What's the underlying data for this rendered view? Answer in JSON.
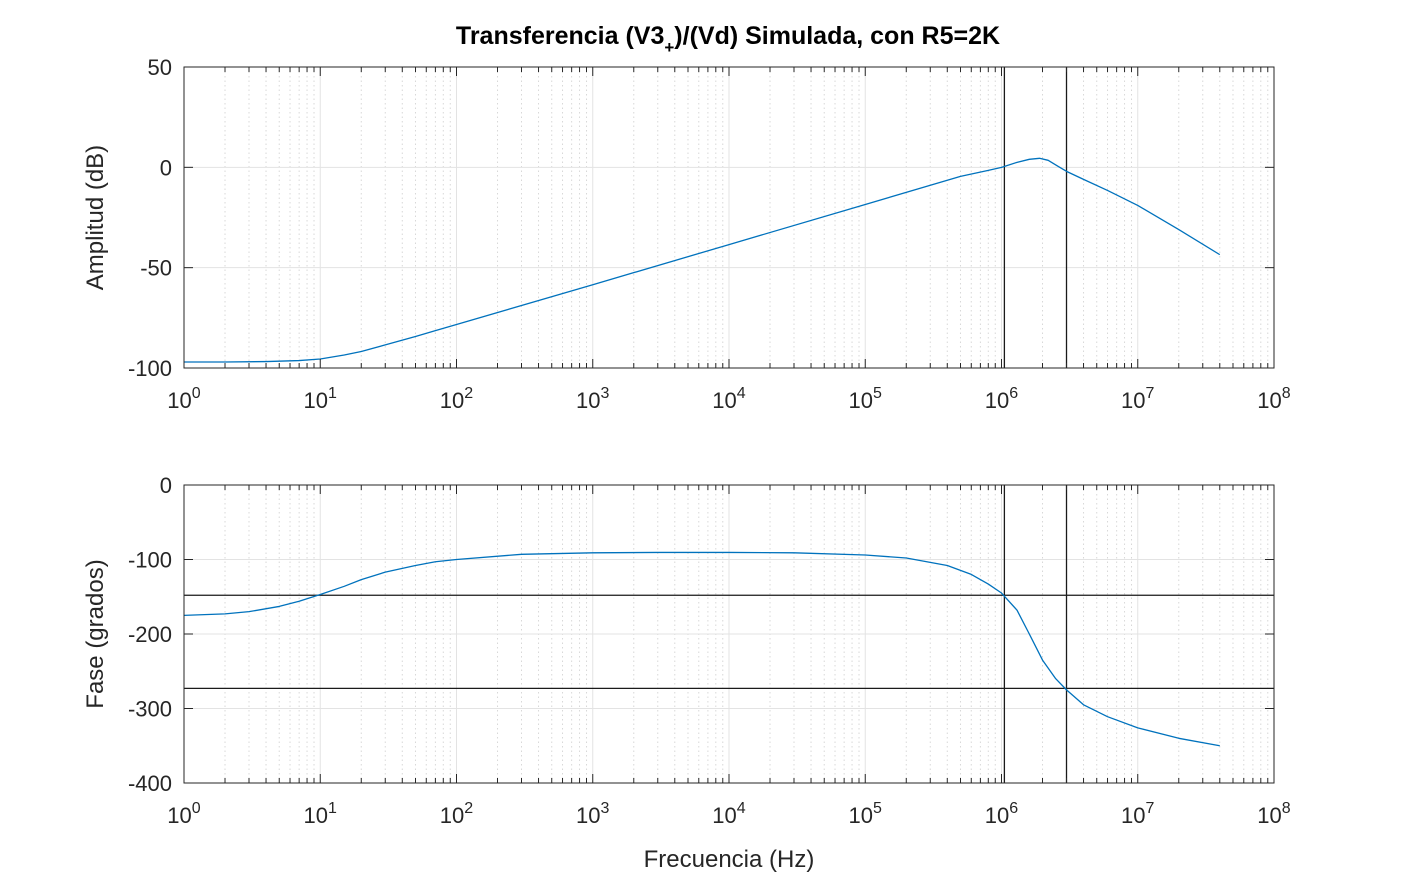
{
  "chart_data": [
    {
      "type": "line",
      "title_parts": {
        "pre": "Transferencia (V3",
        "sub": "+",
        "post": ")/(Vd) Simulada, con R5=2K"
      },
      "xlabel": "",
      "ylabel": "Amplitud (dB)",
      "xscale": "log",
      "xlim": [
        1,
        100000000
      ],
      "ylim": [
        -100,
        50
      ],
      "x_ticks": [
        "0",
        "1",
        "2",
        "3",
        "4",
        "5",
        "6",
        "7",
        "8"
      ],
      "y_ticks": [
        "50",
        "0",
        "-50",
        "-100"
      ],
      "grid": true,
      "vlines": [
        1050000,
        3000000
      ],
      "hlines": [],
      "series": [
        {
          "color": "#0072BD",
          "x": [
            1,
            2,
            4,
            7,
            10,
            15,
            20,
            30,
            50,
            70,
            100,
            1000,
            10000,
            100000,
            500000,
            800000,
            1000000,
            1300000,
            1600000,
            1900000,
            2200000,
            2600000,
            3000000,
            4000000,
            6000000,
            10000000,
            20000000,
            40000000
          ],
          "y": [
            -97,
            -97,
            -96.8,
            -96.3,
            -95.5,
            -93.5,
            -91.8,
            -88.5,
            -84.3,
            -81.4,
            -78.3,
            -58.5,
            -38.5,
            -18.5,
            -4.5,
            -1.5,
            0,
            2.5,
            4,
            4.5,
            3.5,
            0.5,
            -2,
            -6,
            -11.5,
            -19,
            -31,
            -43.5
          ]
        }
      ]
    },
    {
      "type": "line",
      "xlabel": "Frecuencia (Hz)",
      "ylabel": "Fase (grados)",
      "xscale": "log",
      "xlim": [
        1,
        100000000
      ],
      "ylim": [
        -400,
        0
      ],
      "x_ticks": [
        "0",
        "1",
        "2",
        "3",
        "4",
        "5",
        "6",
        "7",
        "8"
      ],
      "y_ticks": [
        "0",
        "-100",
        "-200",
        "-300",
        "-400"
      ],
      "grid": true,
      "vlines": [
        1050000,
        3000000
      ],
      "hlines": [
        -148,
        -273
      ],
      "series": [
        {
          "color": "#0072BD",
          "x": [
            1,
            2,
            3,
            5,
            7,
            10,
            15,
            20,
            30,
            50,
            70,
            100,
            300,
            1000,
            3000,
            10000,
            30000,
            100000,
            200000,
            400000,
            600000,
            800000,
            1000000,
            1300000,
            1600000,
            2000000,
            2500000,
            3000000,
            4000000,
            6000000,
            10000000,
            20000000,
            40000000
          ],
          "y": [
            -175,
            -173,
            -170,
            -163,
            -156,
            -147,
            -136,
            -127,
            -117,
            -108,
            -103,
            -100,
            -93,
            -91,
            -90.5,
            -90.5,
            -91,
            -94,
            -98,
            -108,
            -120,
            -133,
            -145,
            -168,
            -200,
            -235,
            -260,
            -275,
            -295,
            -311,
            -326,
            -340,
            -350
          ]
        }
      ]
    }
  ]
}
